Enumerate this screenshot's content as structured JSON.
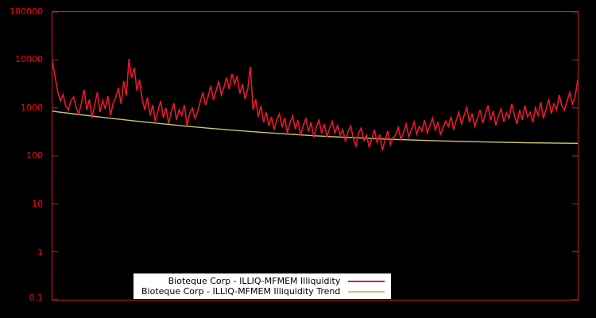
{
  "chart_data": {
    "type": "line",
    "title": "",
    "x_axis": {
      "label": "",
      "tick_labels": []
    },
    "y_axis": {
      "scale": "log",
      "min": 0.1,
      "max": 100000,
      "tick_labels": [
        "100000",
        "10000",
        "1000",
        "100",
        "10",
        "1",
        "0.1"
      ]
    },
    "legend": {
      "position": "bottom-center",
      "background": "#ffffff"
    },
    "series": [
      {
        "name": "Bioteque Corp - ILLIQ-MFMEM Illiquidity",
        "color": "#e8192c",
        "values": [
          9000,
          4500,
          2200,
          1400,
          1900,
          1100,
          900,
          1400,
          1700,
          1000,
          750,
          1250,
          2400,
          900,
          1500,
          620,
          1150,
          2100,
          820,
          1450,
          950,
          1750,
          700,
          1250,
          1650,
          2600,
          1200,
          3600,
          1800,
          10500,
          4200,
          6800,
          2300,
          3900,
          1500,
          900,
          1650,
          700,
          1150,
          520,
          880,
          1400,
          620,
          1000,
          470,
          820,
          1250,
          560,
          920,
          700,
          1150,
          420,
          760,
          980,
          600,
          820,
          1350,
          2100,
          1150,
          1750,
          2900,
          1450,
          2250,
          3600,
          1850,
          2700,
          4300,
          2450,
          5100,
          3200,
          4600,
          2000,
          3100,
          1500,
          2500,
          7200,
          900,
          1500,
          650,
          1100,
          500,
          800,
          420,
          650,
          350,
          560,
          750,
          400,
          620,
          300,
          480,
          680,
          360,
          550,
          260,
          430,
          600,
          320,
          500,
          240,
          400,
          560,
          290,
          460,
          250,
          380,
          520,
          300,
          430,
          270,
          350,
          200,
          320,
          420,
          230,
          160,
          300,
          380,
          210,
          270,
          150,
          230,
          350,
          190,
          280,
          130,
          210,
          330,
          170,
          240,
          270,
          390,
          220,
          310,
          460,
          250,
          350,
          510,
          280,
          410,
          330,
          560,
          300,
          430,
          610,
          350,
          490,
          280,
          390,
          530,
          410,
          660,
          350,
          560,
          810,
          450,
          710,
          1020,
          500,
          760,
          410,
          610,
          910,
          480,
          730,
          1120,
          550,
          860,
          430,
          690,
          960,
          510,
          790,
          610,
          1220,
          700,
          460,
          910,
          560,
          1120,
          650,
          810,
          500,
          1010,
          700,
          1320,
          600,
          920,
          1520,
          760,
          1220,
          910,
          1850,
          1100,
          900,
          1400,
          2100,
          1200,
          1700,
          3800
        ]
      },
      {
        "name": "Bioteque Corp - ILLIQ-MFMEM Illiquidity Trend",
        "color": "#d2c26e",
        "values": [
          850,
          727,
          626,
          543,
          476,
          420,
          375,
          338,
          307,
          283,
          262,
          245,
          231,
          220,
          211,
          203,
          197,
          192,
          188,
          185,
          182
        ]
      }
    ]
  },
  "colors": {
    "background": "#000000",
    "frame": "#c52222",
    "tick_label": "#ff0000",
    "series_main": "#e8192c",
    "series_trend": "#d2c26e",
    "legend_background": "#ffffff",
    "legend_text": "#000000"
  }
}
